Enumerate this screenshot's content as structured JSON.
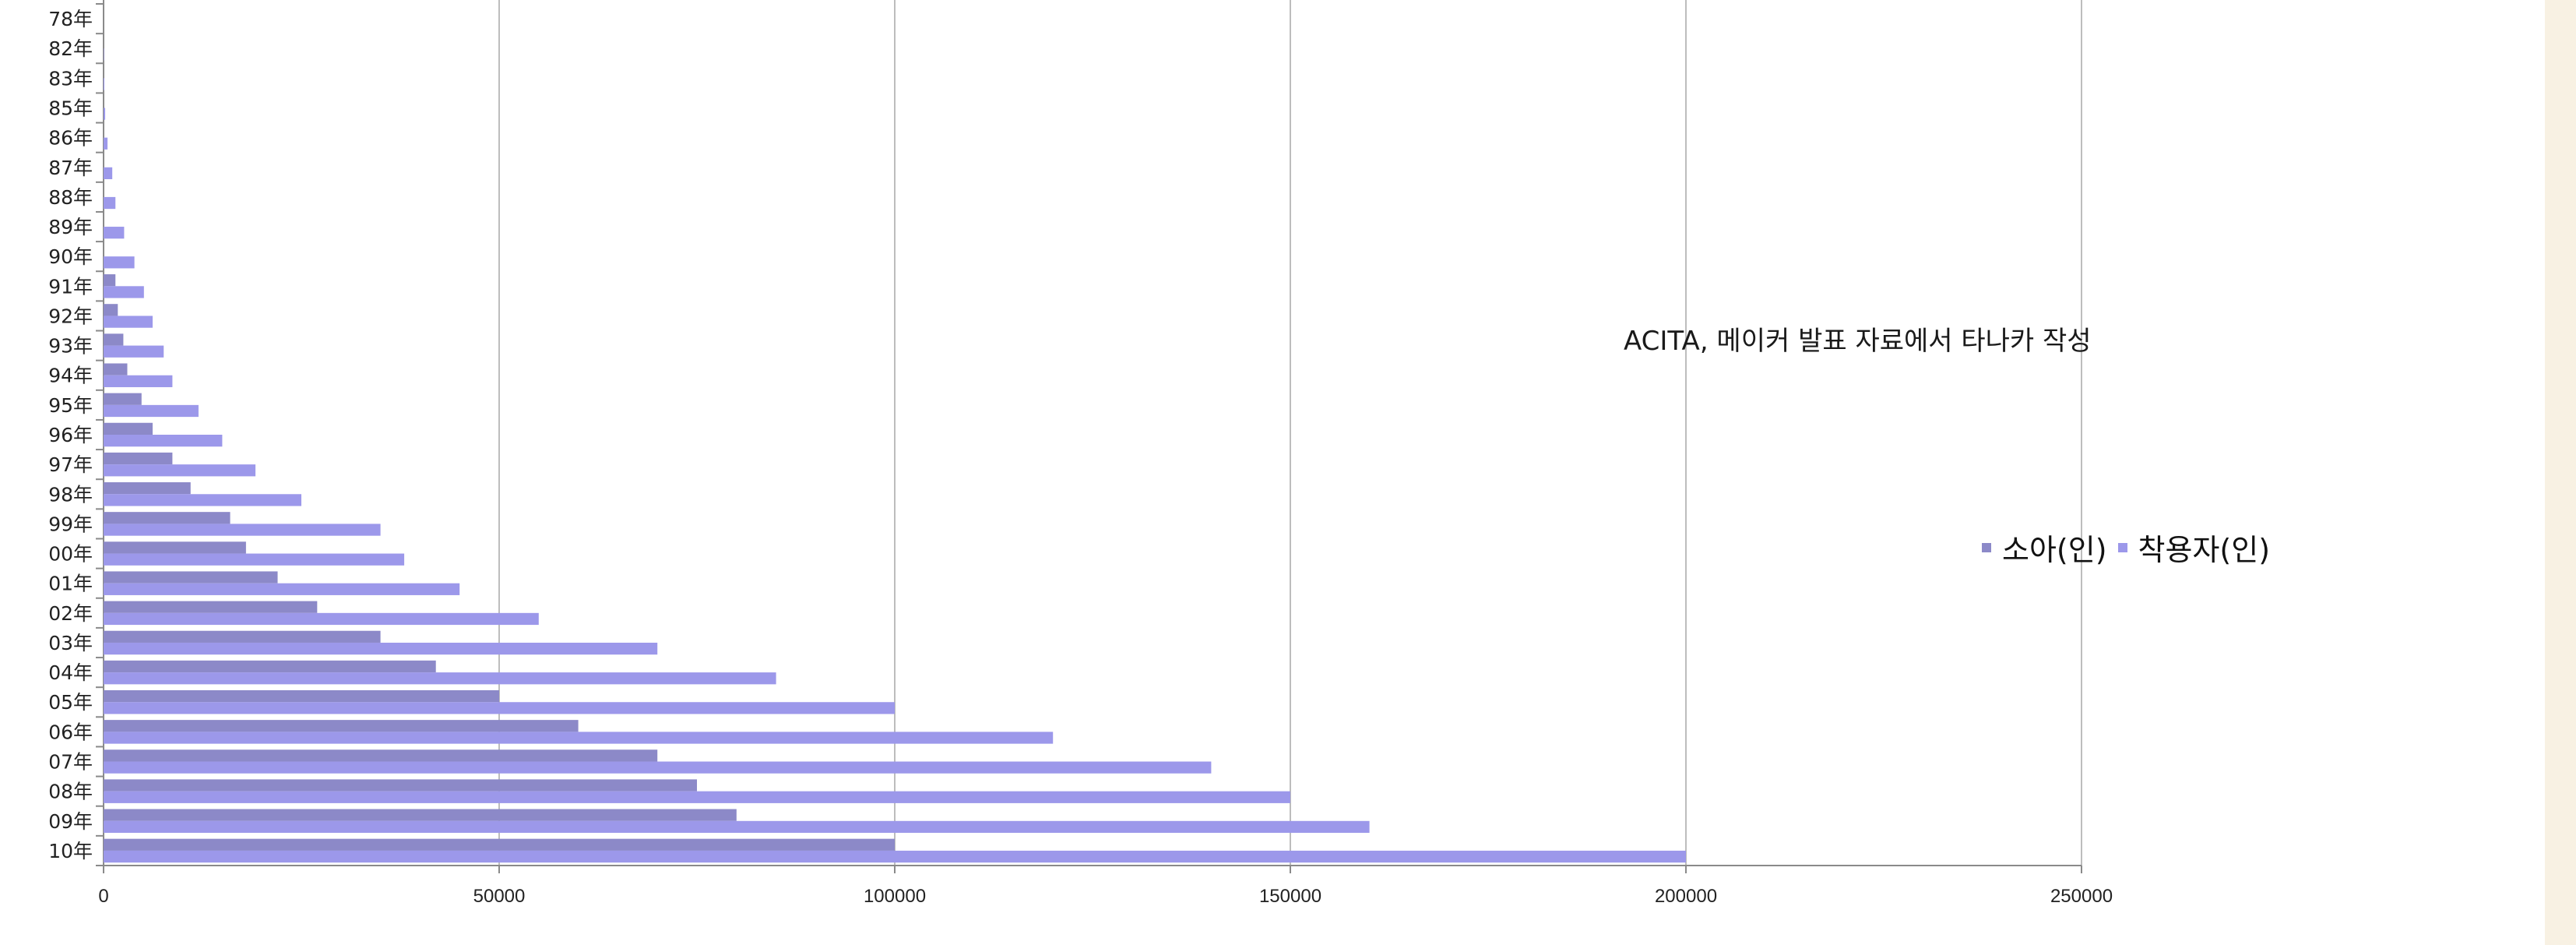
{
  "chart_data": {
    "type": "bar",
    "orientation": "horizontal",
    "categories": [
      "78年",
      "82年",
      "83年",
      "85年",
      "86年",
      "87年",
      "88年",
      "89年",
      "90年",
      "91年",
      "92年",
      "93年",
      "94年",
      "95年",
      "96年",
      "97年",
      "98年",
      "99年",
      "00年",
      "01年",
      "02年",
      "03年",
      "04年",
      "05年",
      "06年",
      "07年",
      "08年",
      "09年",
      "10年"
    ],
    "series": [
      {
        "name": "소아(인)",
        "color": "#9a95d6",
        "values": [
          0,
          0,
          0,
          0,
          0,
          0,
          0,
          0,
          0,
          1500,
          1800,
          2500,
          3000,
          4800,
          6200,
          8700,
          11000,
          16000,
          18000,
          22000,
          27000,
          35000,
          42000,
          50000,
          60000,
          70000,
          75000,
          80000,
          100000
        ]
      },
      {
        "name": "착용자(인)",
        "color": "#9b97e8",
        "values": [
          0,
          50,
          100,
          200,
          500,
          1100,
          1500,
          2600,
          3900,
          5100,
          6200,
          7600,
          8700,
          12000,
          15000,
          19200,
          25000,
          35000,
          38000,
          45000,
          55000,
          70000,
          85000,
          100000,
          120000,
          140000,
          150000,
          160000,
          200000
        ]
      }
    ],
    "xlim": [
      0,
      250000
    ],
    "xticks": [
      "0",
      "50000",
      "100000",
      "150000",
      "200000",
      "250000"
    ],
    "grid": "vertical",
    "legend_position": "right",
    "annotation": "ACITA, 메이커 발표 자료에서 타나카 작성"
  }
}
